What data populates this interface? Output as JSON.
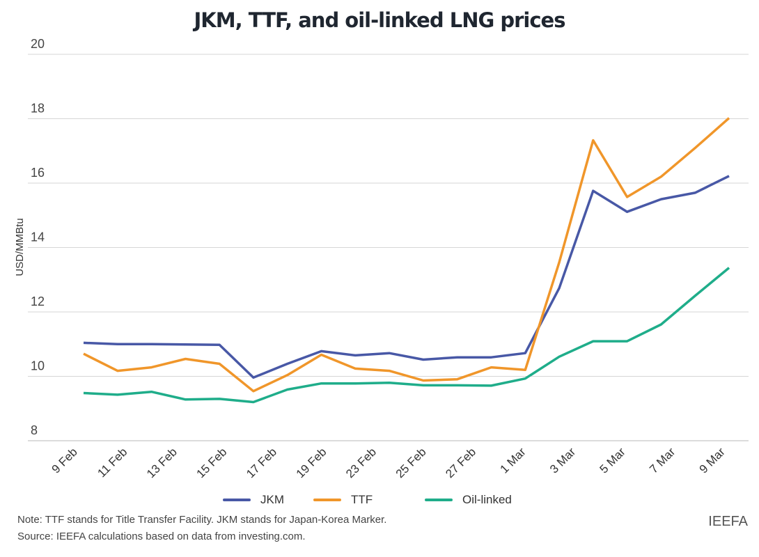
{
  "title": "JKM, TTF, and oil-linked LNG prices",
  "notes": {
    "note": "Note: TTF stands for Title Transfer Facility. JKM stands for Japan-Korea Marker.",
    "source": "Source: IEEFA calculations based on data from investing.com."
  },
  "brand": "IEEFA",
  "chart_data": {
    "type": "line",
    "title": "JKM, TTF, and oil-linked LNG prices",
    "xlabel": "",
    "ylabel": "USD/MMBtu",
    "ylim": [
      8,
      20
    ],
    "yticks": [
      8,
      10,
      12,
      14,
      16,
      18,
      20
    ],
    "grid": true,
    "legend": "bottom-center",
    "x_tick_labels": [
      "9 Feb",
      "11 Feb",
      "13 Feb",
      "15 Feb",
      "17 Feb",
      "19 Feb",
      "23 Feb",
      "25 Feb",
      "27 Feb",
      "1 Mar",
      "3 Mar",
      "5 Mar",
      "7 Mar",
      "9 Mar"
    ],
    "n_points": 20,
    "series": [
      {
        "name": "JKM",
        "color": "#4858a6",
        "values": [
          11.04,
          11.0,
          11.0,
          10.99,
          10.98,
          9.96,
          10.39,
          10.78,
          10.65,
          10.72,
          10.52,
          10.59,
          10.59,
          10.72,
          12.74,
          15.76,
          15.11,
          15.5,
          15.7,
          16.22
        ]
      },
      {
        "name": "TTF",
        "color": "#f0962a",
        "values": [
          10.7,
          10.17,
          10.28,
          10.54,
          10.39,
          9.54,
          10.04,
          10.67,
          10.24,
          10.17,
          9.87,
          9.91,
          10.28,
          10.2,
          13.54,
          17.33,
          15.57,
          16.2,
          17.09,
          18.02
        ]
      },
      {
        "name": "Oil-linked",
        "color": "#1fad8a",
        "values": [
          9.48,
          9.43,
          9.52,
          9.28,
          9.3,
          9.2,
          9.59,
          9.78,
          9.78,
          9.8,
          9.72,
          9.72,
          9.71,
          9.93,
          10.61,
          11.09,
          11.09,
          11.61,
          12.5,
          13.37
        ]
      }
    ]
  }
}
